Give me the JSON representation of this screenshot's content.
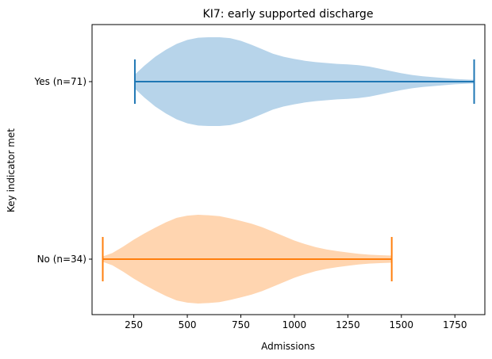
{
  "chart_data": {
    "type": "violin",
    "orientation": "horizontal",
    "title": "KI7: early supported discharge",
    "xlabel": "Admissions",
    "ylabel": "Key indicator met",
    "xlim": [
      55,
      1890
    ],
    "xticks": [
      250,
      500,
      750,
      1000,
      1250,
      1500,
      1750
    ],
    "grid": false,
    "series": [
      {
        "name": "Yes (n=71)",
        "min": 255,
        "max": 1840,
        "color_fill": "#b7d4ea",
        "color_line": "#1f77b4",
        "density": [
          [
            255,
            0.16
          ],
          [
            300,
            0.36
          ],
          [
            350,
            0.56
          ],
          [
            400,
            0.72
          ],
          [
            450,
            0.85
          ],
          [
            500,
            0.94
          ],
          [
            550,
            0.99
          ],
          [
            600,
            1.0
          ],
          [
            650,
            1.0
          ],
          [
            700,
            0.98
          ],
          [
            750,
            0.92
          ],
          [
            800,
            0.83
          ],
          [
            850,
            0.73
          ],
          [
            900,
            0.63
          ],
          [
            950,
            0.56
          ],
          [
            1000,
            0.51
          ],
          [
            1050,
            0.47
          ],
          [
            1100,
            0.44
          ],
          [
            1150,
            0.42
          ],
          [
            1200,
            0.4
          ],
          [
            1250,
            0.39
          ],
          [
            1300,
            0.37
          ],
          [
            1350,
            0.34
          ],
          [
            1400,
            0.29
          ],
          [
            1450,
            0.24
          ],
          [
            1500,
            0.19
          ],
          [
            1550,
            0.15
          ],
          [
            1600,
            0.12
          ],
          [
            1650,
            0.1
          ],
          [
            1700,
            0.08
          ],
          [
            1750,
            0.06
          ],
          [
            1800,
            0.05
          ],
          [
            1840,
            0.04
          ]
        ]
      },
      {
        "name": "No (n=34)",
        "min": 105,
        "max": 1455,
        "color_fill": "#ffd5b0",
        "color_line": "#ff7f0e",
        "density": [
          [
            105,
            0.06
          ],
          [
            150,
            0.14
          ],
          [
            200,
            0.28
          ],
          [
            250,
            0.44
          ],
          [
            300,
            0.58
          ],
          [
            350,
            0.71
          ],
          [
            400,
            0.83
          ],
          [
            450,
            0.93
          ],
          [
            500,
            0.98
          ],
          [
            550,
            1.0
          ],
          [
            600,
            0.99
          ],
          [
            650,
            0.97
          ],
          [
            700,
            0.92
          ],
          [
            750,
            0.86
          ],
          [
            800,
            0.8
          ],
          [
            850,
            0.72
          ],
          [
            900,
            0.62
          ],
          [
            950,
            0.52
          ],
          [
            1000,
            0.42
          ],
          [
            1050,
            0.34
          ],
          [
            1100,
            0.27
          ],
          [
            1150,
            0.22
          ],
          [
            1200,
            0.18
          ],
          [
            1250,
            0.15
          ],
          [
            1300,
            0.12
          ],
          [
            1350,
            0.1
          ],
          [
            1400,
            0.09
          ],
          [
            1455,
            0.08
          ]
        ]
      }
    ]
  }
}
